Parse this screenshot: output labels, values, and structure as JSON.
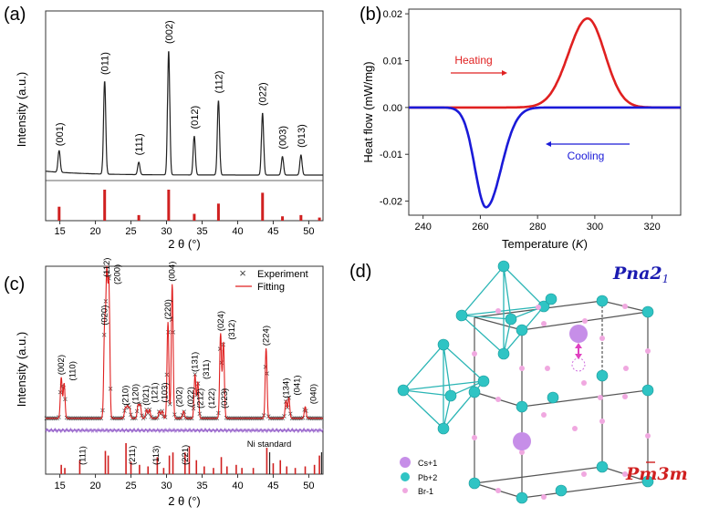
{
  "figure": {
    "panel_labels": [
      "(a)",
      "(b)",
      "(c)",
      "(d)"
    ]
  },
  "chart_data": [
    {
      "panel": "(a)",
      "type": "line",
      "xlabel": "2 θ (°)",
      "ylabel": "Intensity (a.u.)",
      "xlim": [
        13,
        52
      ],
      "xticks": [
        15,
        20,
        25,
        30,
        35,
        40,
        45,
        50
      ],
      "y_ticks_shown": false,
      "peaks": [
        {
          "label": "(001)",
          "x": 14.9,
          "height": 0.14
        },
        {
          "label": "(011)",
          "x": 21.3,
          "height": 0.6
        },
        {
          "label": "(111)",
          "x": 26.1,
          "height": 0.08
        },
        {
          "label": "(002)",
          "x": 30.3,
          "height": 0.8
        },
        {
          "label": "(012)",
          "x": 33.9,
          "height": 0.25
        },
        {
          "label": "(112)",
          "x": 37.3,
          "height": 0.48
        },
        {
          "label": "(022)",
          "x": 43.5,
          "height": 0.4
        },
        {
          "label": "(003)",
          "x": 46.3,
          "height": 0.12
        },
        {
          "label": "(013)",
          "x": 48.9,
          "height": 0.13
        }
      ],
      "reference_sticks": [
        {
          "x": 14.9,
          "h": 0.45
        },
        {
          "x": 21.3,
          "h": 1.0
        },
        {
          "x": 26.1,
          "h": 0.18
        },
        {
          "x": 30.3,
          "h": 1.0
        },
        {
          "x": 33.9,
          "h": 0.22
        },
        {
          "x": 37.3,
          "h": 0.55
        },
        {
          "x": 43.5,
          "h": 0.9
        },
        {
          "x": 46.3,
          "h": 0.14
        },
        {
          "x": 48.9,
          "h": 0.18
        },
        {
          "x": 51.5,
          "h": 0.1
        }
      ],
      "colors": {
        "pattern": "#222222",
        "sticks": "#d02020"
      }
    },
    {
      "panel": "(b)",
      "type": "line",
      "xlabel": "Temperature (K)",
      "xlabel_parts": [
        "Temperature (",
        "K",
        ")"
      ],
      "ylabel": "Heat flow (mW/mg)",
      "xlim": [
        235,
        330
      ],
      "ylim": [
        -0.023,
        0.021
      ],
      "xticks": [
        240,
        260,
        280,
        300,
        320
      ],
      "yticks": [
        -0.02,
        -0.01,
        0.0,
        0.01,
        0.02
      ],
      "ytick_labels": [
        "-0.02",
        "-0.01",
        "0.00",
        "0.01",
        "0.02"
      ],
      "series": [
        {
          "name": "Heating",
          "color": "#e02020",
          "peak_x": 297.5,
          "peak_y": 0.019,
          "baseline_start_x": 272
        },
        {
          "name": "Cooling",
          "color": "#1a1ad8",
          "peak_x": 262.0,
          "peak_y": -0.0213,
          "baseline_end_x": 290
        }
      ],
      "annotations": [
        {
          "text": "Heating",
          "color": "#e02020",
          "arrow": "right"
        },
        {
          "text": "Cooling",
          "color": "#1a1ad8",
          "arrow": "left"
        }
      ]
    },
    {
      "panel": "(c)",
      "type": "scatter",
      "xlabel": "2 θ (°)",
      "ylabel": "Intensity (a.u.)",
      "xlim": [
        13,
        52
      ],
      "xticks": [
        15,
        20,
        25,
        30,
        35,
        40,
        45,
        50
      ],
      "legend": [
        {
          "label": "Experiment",
          "marker": "×",
          "color": "#444444"
        },
        {
          "label": "Fitting",
          "marker": "line",
          "color": "#e02020"
        }
      ],
      "legend_position": "top-right",
      "peaks": [
        {
          "label": "(002)",
          "x": 15.2,
          "height": 0.28
        },
        {
          "label": "(110)",
          "x": 15.6,
          "height": 0.24
        },
        {
          "label": "(020)",
          "x": 21.3,
          "height": 0.62
        },
        {
          "label": "(112)",
          "x": 21.6,
          "height": 0.95
        },
        {
          "label": "(200)",
          "x": 21.9,
          "height": 0.9
        },
        {
          "label": "(210)",
          "x": 24.2,
          "height": 0.07
        },
        {
          "label": "(120)",
          "x": 24.5,
          "height": 0.08
        },
        {
          "label": "(021)",
          "x": 24.8,
          "height": 0.07
        },
        {
          "label": "(121)",
          "x": 26.0,
          "height": 0.09
        },
        {
          "label": "(103)",
          "x": 26.3,
          "height": 0.09
        },
        {
          "label": "(202)",
          "x": 27.2,
          "height": 0.06
        },
        {
          "label": "(022)",
          "x": 27.6,
          "height": 0.06
        },
        {
          "label": "(212)",
          "x": 29.0,
          "height": 0.05
        },
        {
          "label": "(122)",
          "x": 29.4,
          "height": 0.05
        },
        {
          "label": "(220)",
          "x": 30.2,
          "height": 0.66
        },
        {
          "label": "(004)",
          "x": 30.8,
          "height": 0.92
        },
        {
          "label": "(023)",
          "x": 32.4,
          "height": 0.05
        },
        {
          "label": "(131)",
          "x": 34.0,
          "height": 0.3
        },
        {
          "label": "(311)",
          "x": 34.4,
          "height": 0.25
        },
        {
          "label": "(024)",
          "x": 37.6,
          "height": 0.58
        },
        {
          "label": "(312)",
          "x": 38.0,
          "height": 0.52
        },
        {
          "label": "(224)",
          "x": 44.0,
          "height": 0.48
        },
        {
          "label": "(134)",
          "x": 46.8,
          "height": 0.12
        },
        {
          "label": "(041)",
          "x": 47.2,
          "height": 0.14
        },
        {
          "label": "(040)",
          "x": 49.5,
          "height": 0.08
        }
      ],
      "bottom_annotations": [
        {
          "label": "(111)",
          "x": 18.2
        },
        {
          "label": "(211)",
          "x": 25.2
        },
        {
          "label": "(113)",
          "x": 28.5
        },
        {
          "label": "(221)",
          "x": 32.6
        },
        {
          "label": "Ni standard",
          "x": 47.0
        }
      ],
      "reference_sticks": [
        {
          "x": 15.2,
          "h": 0.3
        },
        {
          "x": 15.7,
          "h": 0.2
        },
        {
          "x": 17.8,
          "h": 0.45
        },
        {
          "x": 21.4,
          "h": 0.75
        },
        {
          "x": 21.8,
          "h": 0.6
        },
        {
          "x": 24.3,
          "h": 1.0
        },
        {
          "x": 25.0,
          "h": 0.4
        },
        {
          "x": 26.2,
          "h": 0.3
        },
        {
          "x": 27.4,
          "h": 0.25
        },
        {
          "x": 28.7,
          "h": 0.55
        },
        {
          "x": 29.6,
          "h": 0.2
        },
        {
          "x": 30.4,
          "h": 0.6
        },
        {
          "x": 30.9,
          "h": 0.7
        },
        {
          "x": 32.6,
          "h": 0.7
        },
        {
          "x": 33.2,
          "h": 0.9
        },
        {
          "x": 34.2,
          "h": 0.45
        },
        {
          "x": 35.3,
          "h": 0.25
        },
        {
          "x": 36.6,
          "h": 0.2
        },
        {
          "x": 37.7,
          "h": 0.55
        },
        {
          "x": 38.5,
          "h": 0.25
        },
        {
          "x": 39.8,
          "h": 0.3
        },
        {
          "x": 40.6,
          "h": 0.2
        },
        {
          "x": 42.2,
          "h": 0.2
        },
        {
          "x": 44.1,
          "h": 0.85
        },
        {
          "x": 45.0,
          "h": 0.35
        },
        {
          "x": 46.0,
          "h": 0.45
        },
        {
          "x": 46.9,
          "h": 0.25
        },
        {
          "x": 48.1,
          "h": 0.2
        },
        {
          "x": 49.5,
          "h": 0.25
        },
        {
          "x": 50.8,
          "h": 0.3
        },
        {
          "x": 51.5,
          "h": 0.6
        }
      ],
      "ni_standard_sticks": [
        44.5,
        51.8
      ],
      "colors": {
        "experiment": "#444444",
        "fit": "#e02020",
        "difference": "#9966cc",
        "sticks": "#d02020"
      }
    }
  ],
  "crystal": {
    "panel": "(d)",
    "label_top": "Pna2",
    "label_top_sub": "1",
    "label_bottom": "Pm3m",
    "legend": [
      {
        "label": "Cs+1",
        "color": "#c68ee8"
      },
      {
        "label": "Pb+2",
        "color": "#2fc4c4"
      },
      {
        "label": "Br-1",
        "color": "#f0a8e0"
      }
    ],
    "colors": {
      "title_top": "#1a1ab0",
      "title_bottom": "#d02020",
      "octahedron": "#2ab5b5",
      "cell": "#555555"
    }
  }
}
